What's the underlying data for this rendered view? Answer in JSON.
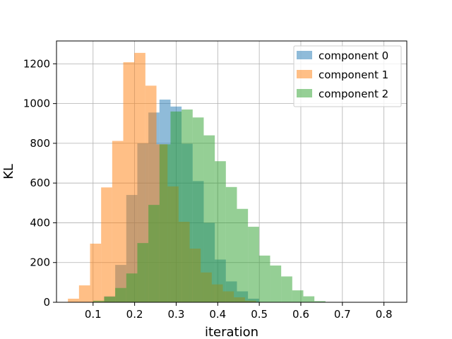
{
  "chart_data": {
    "type": "bar",
    "xlabel": "iteration",
    "ylabel": "KL",
    "xlim": [
      0.012,
      0.855
    ],
    "ylim": [
      0,
      1315
    ],
    "xticks": [
      0.1,
      0.2,
      0.3,
      0.4,
      0.5,
      0.6,
      0.7,
      0.8
    ],
    "xtick_labels": [
      "0.1",
      "0.2",
      "0.3",
      "0.4",
      "0.5",
      "0.6",
      "0.7",
      "0.8"
    ],
    "yticks": [
      0,
      200,
      400,
      600,
      800,
      1000,
      1200
    ],
    "ytick_labels": [
      "0",
      "200",
      "400",
      "600",
      "800",
      "1000",
      "1200"
    ],
    "grid": true,
    "legend_position": "top-right",
    "bar_opacity": 0.5,
    "series": [
      {
        "name": "component 0",
        "color": "#1f77b4",
        "bin_start": 0.1,
        "bin_width": 0.02663,
        "values": [
          2,
          30,
          188,
          540,
          800,
          955,
          1020,
          985,
          798,
          610,
          400,
          215,
          105,
          55,
          18
        ]
      },
      {
        "name": "component 1",
        "color": "#ff7f0e",
        "bin_start": 0.0395,
        "bin_width": 0.02663,
        "values": [
          18,
          85,
          295,
          578,
          812,
          1208,
          1255,
          1090,
          795,
          583,
          405,
          270,
          150,
          90,
          55,
          25,
          8
        ]
      },
      {
        "name": "component 2",
        "color": "#2ca02c",
        "bin_start": 0.1,
        "bin_width": 0.02663,
        "values": [
          8,
          28,
          72,
          145,
          298,
          490,
          795,
          960,
          970,
          930,
          840,
          710,
          580,
          470,
          380,
          235,
          185,
          130,
          60,
          30,
          6
        ]
      }
    ]
  }
}
